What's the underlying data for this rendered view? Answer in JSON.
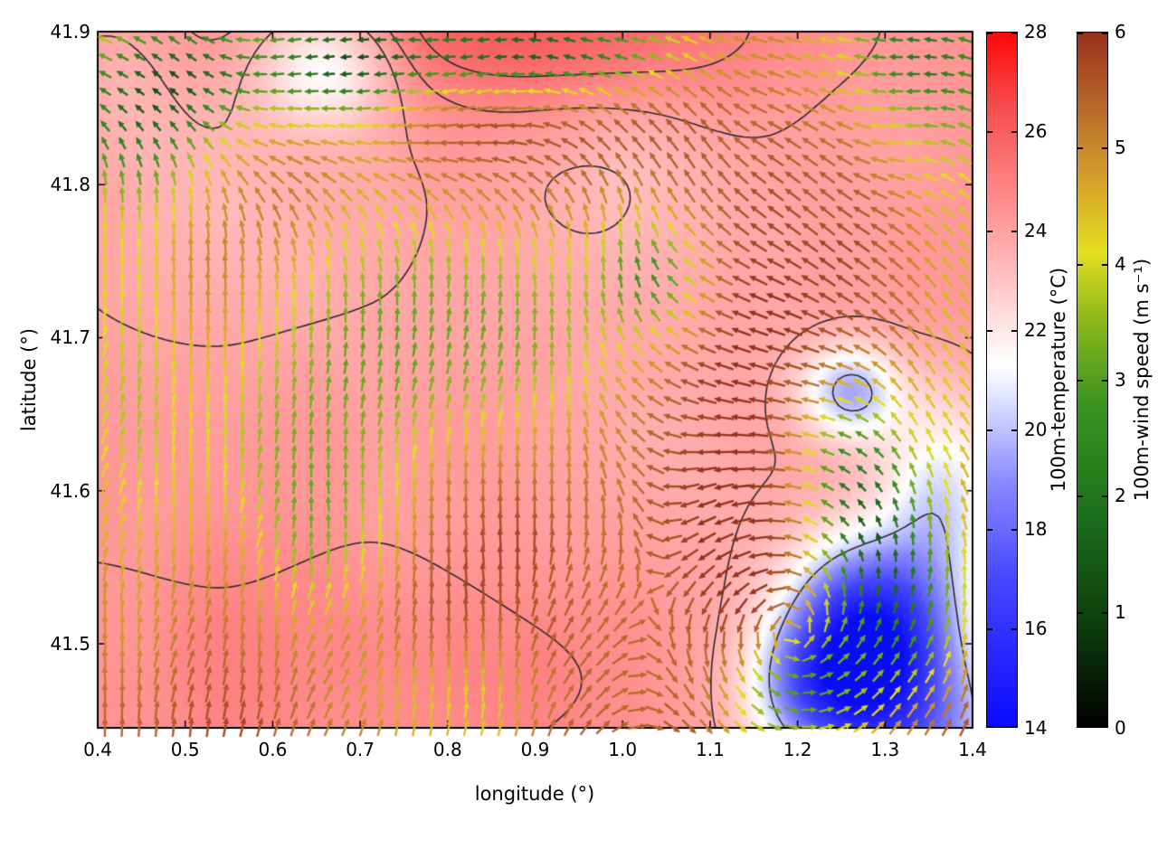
{
  "figure": {
    "background": "#ffffff"
  },
  "chart_data": {
    "type": "heatmap",
    "overlay_types": [
      "contours",
      "wind_vectors"
    ],
    "title": "",
    "xlabel": "longitude (°)",
    "ylabel": "latitude (°)",
    "xlim": [
      0.4,
      1.4
    ],
    "ylim": [
      41.445,
      41.9
    ],
    "grid": false,
    "x_ticks": {
      "values": [
        0.4,
        0.5,
        0.6,
        0.7,
        0.8,
        0.9,
        1.0,
        1.1,
        1.2,
        1.3,
        1.4
      ],
      "labels": [
        "0.4",
        "0.5",
        "0.6",
        "0.7",
        "0.8",
        "0.9",
        "1.0",
        "1.1",
        "1.2",
        "1.3",
        "1.4"
      ]
    },
    "y_ticks": {
      "values": [
        41.5,
        41.6,
        41.7,
        41.8,
        41.9
      ],
      "labels": [
        "41.5",
        "41.6",
        "41.7",
        "41.8",
        "41.9"
      ]
    },
    "colorbars": [
      {
        "id": "temperature",
        "label": "100m-temperature (°C)",
        "min": 14,
        "max": 28,
        "tick_values": [
          14,
          16,
          18,
          20,
          22,
          24,
          26,
          28
        ],
        "tick_labels": [
          "14",
          "16",
          "18",
          "20",
          "22",
          "24",
          "26",
          "28"
        ],
        "stops": [
          [
            14,
            "#0a0aff"
          ],
          [
            17,
            "#4747ff"
          ],
          [
            19,
            "#8c8cff"
          ],
          [
            20.5,
            "#d8dcff"
          ],
          [
            21.3,
            "#ffffff"
          ],
          [
            22.3,
            "#ffdcdc"
          ],
          [
            23.5,
            "#ffb2b2"
          ],
          [
            24.5,
            "#ff8f8f"
          ],
          [
            25.5,
            "#fa7070"
          ],
          [
            26.5,
            "#f64d4d"
          ],
          [
            28,
            "#ff0808"
          ]
        ]
      },
      {
        "id": "wind-speed",
        "label": "100m-wind speed (m s⁻¹)",
        "min": 0,
        "max": 6,
        "tick_values": [
          0,
          1,
          2,
          3,
          4,
          5,
          6
        ],
        "tick_labels": [
          "0",
          "1",
          "2",
          "3",
          "4",
          "5",
          "6"
        ],
        "stops": [
          [
            0,
            "#000000"
          ],
          [
            0.9,
            "#0d3f0d"
          ],
          [
            1.8,
            "#1d6e1d"
          ],
          [
            2.8,
            "#3c9420"
          ],
          [
            3.5,
            "#8ab61c"
          ],
          [
            4.1,
            "#e3df1f"
          ],
          [
            4.7,
            "#d6a32a"
          ],
          [
            5.3,
            "#bb6e2c"
          ],
          [
            6,
            "#96301c"
          ]
        ]
      }
    ],
    "temperature_field": {
      "units": "°C",
      "base": 24.2,
      "noise": {
        "seed": 7,
        "freq": 5.5,
        "octaves": 3,
        "amp": 0.55
      },
      "blobs": [
        [
          1.28,
          41.505,
          0.065,
          0.042,
          -9.5
        ],
        [
          1.365,
          41.595,
          0.05,
          0.05,
          -3.5
        ],
        [
          1.26,
          41.665,
          0.04,
          0.022,
          -4.5
        ],
        [
          0.66,
          41.878,
          0.055,
          0.028,
          -3.2
        ],
        [
          0.85,
          41.905,
          0.22,
          0.035,
          1.8
        ],
        [
          0.55,
          41.78,
          0.16,
          0.08,
          -0.7
        ],
        [
          1.05,
          41.64,
          0.14,
          0.09,
          -0.6
        ],
        [
          0.75,
          41.49,
          0.22,
          0.05,
          0.7
        ],
        [
          0.98,
          41.8,
          0.1,
          0.05,
          -1.0
        ],
        [
          1.21,
          41.47,
          0.05,
          0.03,
          -3.0
        ],
        [
          1.33,
          41.44,
          0.09,
          0.04,
          -5.0
        ],
        [
          0.42,
          41.87,
          0.05,
          0.04,
          -0.8
        ]
      ]
    },
    "contours": {
      "levels": [
        19.5,
        23.3,
        24.1,
        24.9
      ],
      "color": "#2b2b2b",
      "width": 1.6,
      "noise": {
        "seed": 11,
        "freq": 2.8,
        "octaves": 2,
        "amp": 0.9
      }
    },
    "wind_field": {
      "units": "m s⁻¹",
      "speed": {
        "base": 5.7,
        "clamp": [
          0.2,
          6
        ],
        "noise": {
          "seed": 21,
          "freq": 7,
          "octaves": 3,
          "amp": 0.7
        },
        "blobs": [
          [
            0.44,
            41.85,
            0.07,
            0.045,
            -3.2
          ],
          [
            0.52,
            41.875,
            0.06,
            0.03,
            -2.5
          ],
          [
            0.67,
            41.88,
            0.06,
            0.03,
            -3.0
          ],
          [
            0.88,
            41.888,
            0.13,
            0.02,
            -4.4
          ],
          [
            1.33,
            41.895,
            0.07,
            0.03,
            -2.2
          ],
          [
            1.36,
            41.86,
            0.07,
            0.05,
            -1.9
          ],
          [
            0.62,
            41.64,
            0.11,
            0.07,
            -1.7
          ],
          [
            0.75,
            41.72,
            0.11,
            0.06,
            -1.8
          ],
          [
            0.9,
            41.7,
            0.09,
            0.06,
            -1.6
          ],
          [
            0.67,
            41.56,
            0.07,
            0.05,
            -1.5
          ],
          [
            0.43,
            41.63,
            0.05,
            0.12,
            -1.4
          ],
          [
            1.28,
            41.57,
            0.05,
            0.045,
            -2.2
          ],
          [
            1.33,
            41.52,
            0.05,
            0.04,
            -2.4
          ],
          [
            1.2,
            41.465,
            0.06,
            0.03,
            -2.8
          ],
          [
            0.78,
            41.46,
            0.09,
            0.03,
            -1.6
          ],
          [
            1.39,
            41.68,
            0.045,
            0.09,
            -1.6
          ],
          [
            1.04,
            41.74,
            0.045,
            0.03,
            -2.6
          ],
          [
            1.26,
            41.62,
            0.05,
            0.04,
            -1.8
          ]
        ]
      },
      "direction": {
        "u0": 0.15,
        "v0": 0.85,
        "top_jet": {
          "amp": -2.0,
          "yc": 41.9,
          "sy": 0.09,
          "xc": 0.8,
          "sx": 0.45
        },
        "top_v_damp": {
          "amp": 0.8,
          "sy": 0.12
        },
        "right_west": {
          "amp": -0.5,
          "xc": 1.25,
          "sx": 0.2,
          "yc": 41.72,
          "sy": 0.15
        },
        "vortex": {
          "cx": 1.26,
          "cy": 41.5,
          "sigma": 0.14,
          "amp": -0.28
        },
        "angle_noise": {
          "seed": 33,
          "freq": 6,
          "octaves": 2,
          "amp_deg": 40
        }
      }
    },
    "style": {
      "frame_color": "#000000",
      "tick_len": 8
    }
  }
}
